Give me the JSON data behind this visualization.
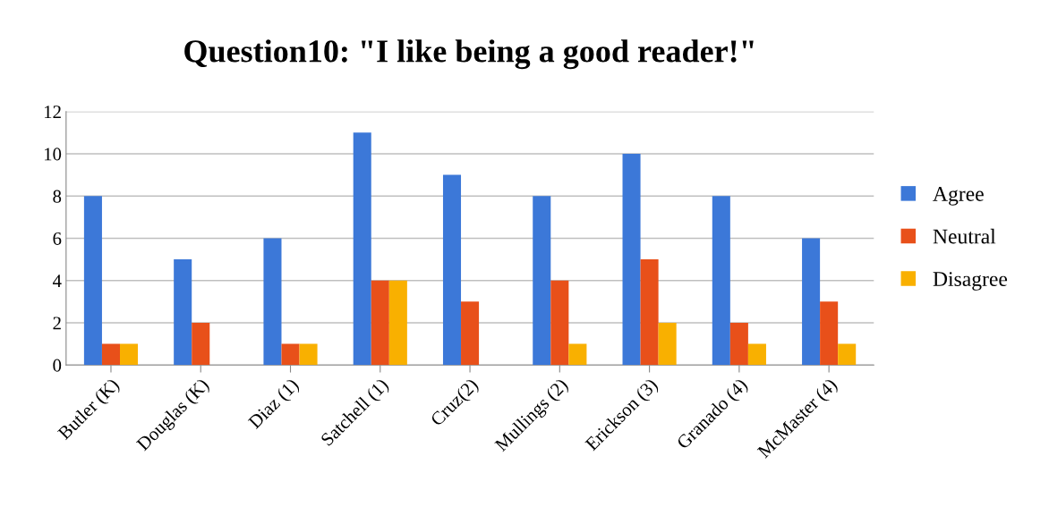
{
  "chart_data": {
    "type": "bar",
    "title": "Question10: \"I like being a good reader!\"",
    "categories": [
      "Butler (K)",
      "Douglas (K)",
      "Diaz (1)",
      "Satchell (1)",
      "Cruz(2)",
      "Mullings (2)",
      "Erickson (3)",
      "Granado (4)",
      "McMaster (4)"
    ],
    "series": [
      {
        "name": "Agree",
        "color": "#3c78d8",
        "values": [
          8,
          5,
          6,
          11,
          9,
          8,
          10,
          8,
          6
        ]
      },
      {
        "name": "Neutral",
        "color": "#e8501a",
        "values": [
          1,
          2,
          1,
          4,
          3,
          4,
          5,
          2,
          3
        ]
      },
      {
        "name": "Disagree",
        "color": "#f9b000",
        "values": [
          1,
          0,
          1,
          4,
          0,
          1,
          2,
          1,
          1
        ]
      }
    ],
    "ylim": [
      0,
      12
    ],
    "yticks": [
      0,
      2,
      4,
      6,
      8,
      10,
      12
    ],
    "grid": "y",
    "legend": "right"
  }
}
